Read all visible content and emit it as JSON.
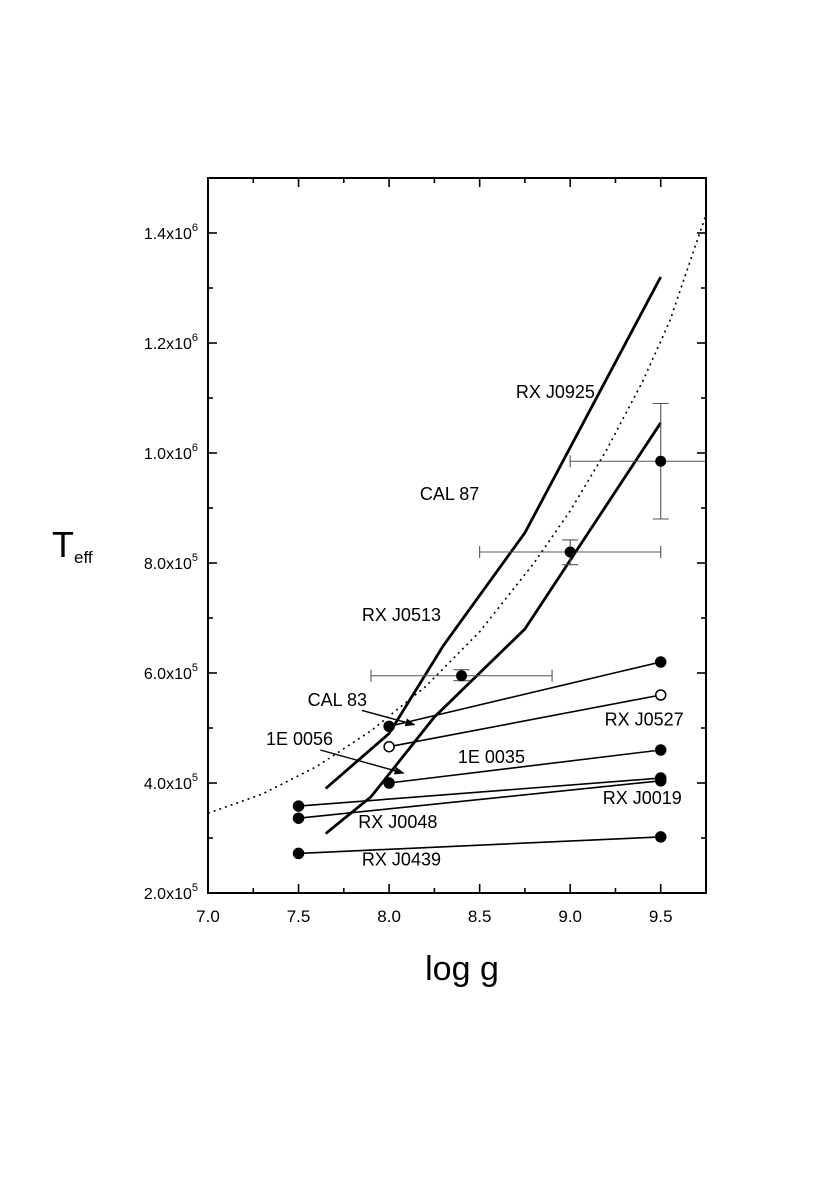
{
  "chart_data": {
    "type": "scatter",
    "xlabel": "log g",
    "ylabel_main": "T",
    "ylabel_sub": "eff",
    "xlim": [
      7.0,
      9.75
    ],
    "ylim": [
      200000,
      1500000
    ],
    "xticks": [
      {
        "value": 7.0,
        "label": "7.0"
      },
      {
        "value": 7.5,
        "label": "7.5"
      },
      {
        "value": 8.0,
        "label": "8.0"
      },
      {
        "value": 8.5,
        "label": "8.5"
      },
      {
        "value": 9.0,
        "label": "9.0"
      },
      {
        "value": 9.5,
        "label": "9.5"
      }
    ],
    "yticks": [
      {
        "value": 200000,
        "mantissa": "2.0x10",
        "exp": "5"
      },
      {
        "value": 400000,
        "mantissa": "4.0x10",
        "exp": "5"
      },
      {
        "value": 600000,
        "mantissa": "6.0x10",
        "exp": "5"
      },
      {
        "value": 800000,
        "mantissa": "8.0x10",
        "exp": "5"
      },
      {
        "value": 1000000,
        "mantissa": "1.0x10",
        "exp": "6"
      },
      {
        "value": 1200000,
        "mantissa": "1.2x10",
        "exp": "6"
      },
      {
        "value": 1400000,
        "mantissa": "1.4x10",
        "exp": "6"
      }
    ],
    "dotted_curve": [
      [
        7.0,
        345000
      ],
      [
        7.3,
        380000
      ],
      [
        7.6,
        430000
      ],
      [
        7.9,
        495000
      ],
      [
        8.2,
        575000
      ],
      [
        8.5,
        675000
      ],
      [
        8.8,
        800000
      ],
      [
        9.0,
        895000
      ],
      [
        9.2,
        1005000
      ],
      [
        9.4,
        1130000
      ],
      [
        9.55,
        1240000
      ],
      [
        9.7,
        1385000
      ],
      [
        9.82,
        1500000
      ]
    ],
    "thick_curves": [
      [
        [
          7.65,
          390000
        ],
        [
          8.0,
          490000
        ],
        [
          8.3,
          650000
        ],
        [
          8.75,
          855000
        ],
        [
          9.5,
          1320000
        ]
      ],
      [
        [
          7.65,
          308000
        ],
        [
          7.9,
          375000
        ],
        [
          8.25,
          520000
        ],
        [
          8.75,
          680000
        ],
        [
          9.5,
          1055000
        ]
      ]
    ],
    "lines": [
      {
        "name": "CAL 83",
        "x1": 8.0,
        "y1": 503000,
        "x2": 9.5,
        "y2": 620000,
        "open_end": false
      },
      {
        "name": "1E 0035",
        "x1": 8.0,
        "y1": 466000,
        "x2": 9.5,
        "y2": 560000,
        "open_end": true
      },
      {
        "name": "RX J0527",
        "x1": 8.0,
        "y1": 400000,
        "x2": 9.5,
        "y2": 460000,
        "open_end": false
      },
      {
        "name": "RX J0019",
        "x1": 7.5,
        "y1": 358000,
        "x2": 9.5,
        "y2": 409000,
        "open_end": false
      },
      {
        "name": "RX J0048",
        "x1": 7.5,
        "y1": 336000,
        "x2": 9.5,
        "y2": 404000,
        "open_end": false
      },
      {
        "name": "RX J0439",
        "x1": 7.5,
        "y1": 272000,
        "x2": 9.5,
        "y2": 302000,
        "open_end": false
      }
    ],
    "errorbar_points": [
      {
        "x": 9.5,
        "y": 985000,
        "xerr_lo": 9.0,
        "xerr_hi": 9.75,
        "yerr_lo": 880000,
        "yerr_hi": 1090000
      },
      {
        "x": 9.0,
        "y": 820000,
        "xerr_lo": 8.5,
        "xerr_hi": 9.5,
        "yerr_lo": 797000,
        "yerr_hi": 842000
      },
      {
        "x": 8.4,
        "y": 595000,
        "xerr_lo": 7.9,
        "xerr_hi": 8.9,
        "yerr_lo": 586000,
        "yerr_hi": 606000
      }
    ],
    "annotations": [
      {
        "text": "RX J0925",
        "x": 8.7,
        "y": 1100000
      },
      {
        "text": "CAL 87",
        "x": 8.17,
        "y": 915000
      },
      {
        "text": "RX J0513",
        "x": 7.85,
        "y": 695000
      },
      {
        "text": "CAL 83",
        "x": 7.55,
        "y": 540000
      },
      {
        "text": "1E 0056",
        "x": 7.32,
        "y": 469000
      },
      {
        "text": "1E 0035",
        "x": 8.38,
        "y": 436000
      },
      {
        "text": "RX J0527",
        "x": 9.19,
        "y": 505000
      },
      {
        "text": "RX J0019",
        "x": 9.18,
        "y": 362000
      },
      {
        "text": "RX J0048",
        "x": 7.83,
        "y": 318000
      },
      {
        "text": "RX J0439",
        "x": 7.85,
        "y": 250000
      }
    ],
    "arrows": [
      {
        "label": "CAL 83",
        "x1": 7.85,
        "y1": 532000,
        "x2": 8.14,
        "y2": 506000
      },
      {
        "label": "1E 0056",
        "x1": 7.62,
        "y1": 460000,
        "x2": 8.08,
        "y2": 418000
      }
    ]
  }
}
